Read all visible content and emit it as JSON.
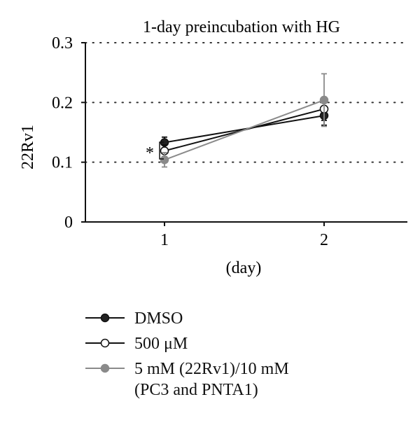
{
  "chart_data": {
    "type": "line",
    "title": "1-day preincubation with HG",
    "xlabel": "(day)",
    "ylabel": "22Rv1",
    "categories": [
      "1",
      "2"
    ],
    "ylim": [
      0,
      0.3
    ],
    "yticks": [
      "0",
      "0.1",
      "0.2",
      "0.3"
    ],
    "grid": "horizontal dotted",
    "legend_position": "bottom",
    "annotation": "*",
    "series": [
      {
        "name": "DMSO",
        "values": [
          0.133,
          0.178
        ],
        "errors": [
          0.009,
          0.016
        ],
        "color": "#111111",
        "marker_fill": "#222222"
      },
      {
        "name": "500 μM",
        "values": [
          0.119,
          0.189
        ],
        "errors": [
          0.01,
          0.019
        ],
        "color": "#111111",
        "marker_fill": "#ffffff"
      },
      {
        "name": "5 mM (22Rv1)/10 mM",
        "name_line2": "(PC3 and PNTA1)",
        "values": [
          0.104,
          0.204
        ],
        "errors": [
          0.012,
          0.044
        ],
        "color": "#8a8a8a",
        "marker_fill": "#8a8a8a"
      }
    ]
  }
}
